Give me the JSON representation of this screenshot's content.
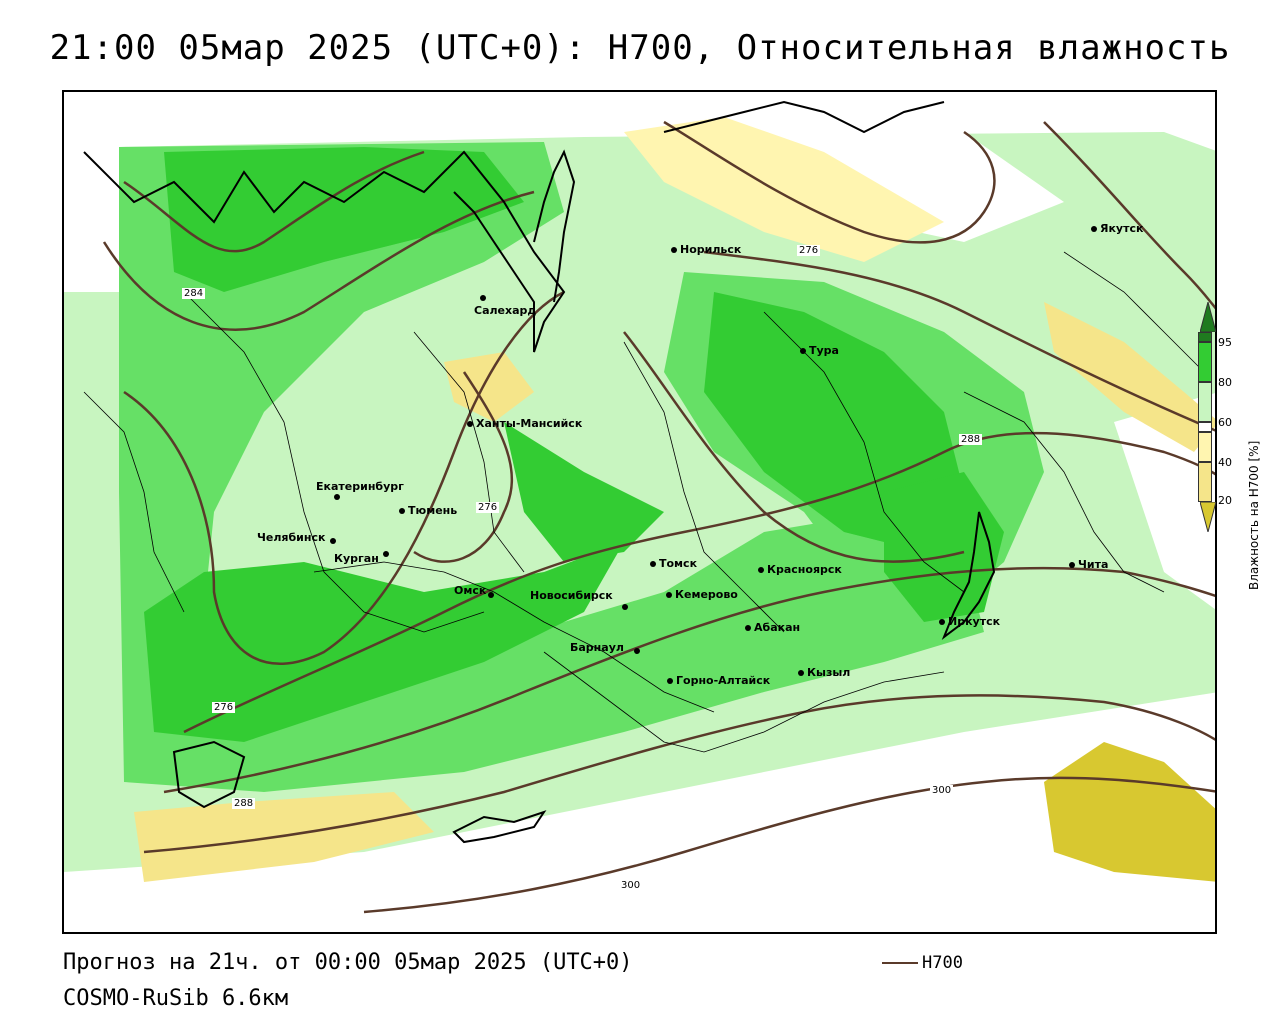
{
  "title": "21:00 05мар 2025 (UTC+0): H700, Относительная влажность",
  "footer": {
    "forecast": "Прогноз на 21ч. от 00:00 05мар 2025 (UTC+0)",
    "model": "COSMO-RuSib 6.6км"
  },
  "legend": {
    "title": "Влажность на H700 [%]",
    "ticks": [
      "95",
      "80",
      "60",
      "40",
      "20"
    ],
    "colors": {
      "c95": "#1f7a1f",
      "c80": "#33cc33",
      "c60": "#66e066",
      "c50": "#c8f5c0",
      "c40": "#ffffff",
      "c30": "#fff5b0",
      "c20": "#f5e58a",
      "c10": "#d8c830"
    }
  },
  "contour_key": "H700",
  "contour_color": "#5a3a2a",
  "isolines": [
    "284",
    "276",
    "276",
    "288",
    "276",
    "288",
    "300",
    "300"
  ],
  "cities": [
    {
      "name": "Норильск"
    },
    {
      "name": "Якутск"
    },
    {
      "name": "Салехард"
    },
    {
      "name": "Тура"
    },
    {
      "name": "Ханты-Мансийск"
    },
    {
      "name": "Екатеринбург"
    },
    {
      "name": "Тюмень"
    },
    {
      "name": "Челябинск"
    },
    {
      "name": "Курган"
    },
    {
      "name": "Томск"
    },
    {
      "name": "Красноярск"
    },
    {
      "name": "Чита"
    },
    {
      "name": "Омск"
    },
    {
      "name": "Новосибирск"
    },
    {
      "name": "Кемерово"
    },
    {
      "name": "Абакан"
    },
    {
      "name": "Иркутск"
    },
    {
      "name": "Барнаул"
    },
    {
      "name": "Кызыл"
    },
    {
      "name": "Горно-Алтайск"
    }
  ]
}
